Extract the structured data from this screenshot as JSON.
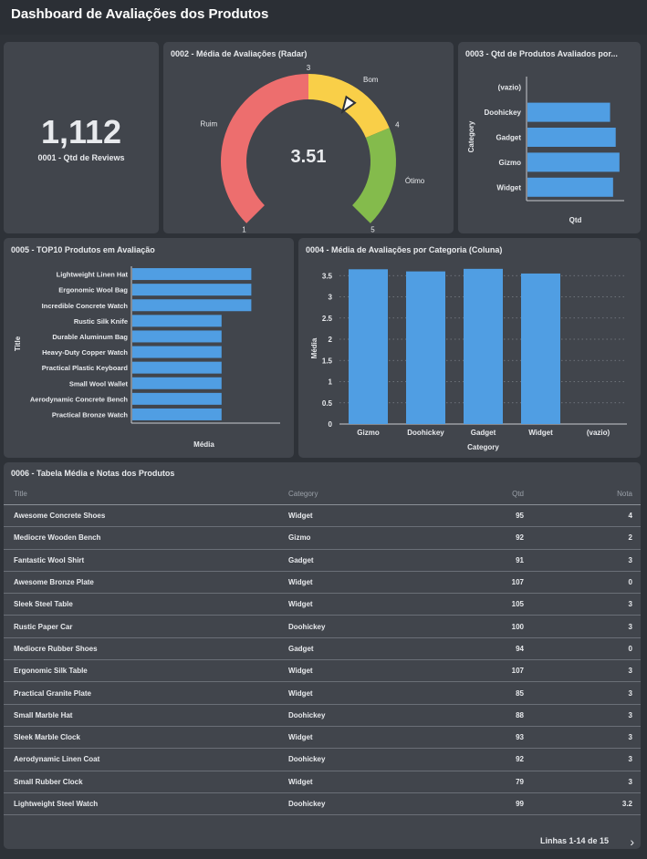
{
  "header": {
    "title": "Dashboard de Avaliações dos Produtos"
  },
  "kpi": {
    "value": "1,112",
    "label": "0001 - Qtd de Reviews"
  },
  "gauge": {
    "title": "0002 - Média de Avaliações (Radar)",
    "value": 3.51,
    "value_label": "3.51",
    "min": 1,
    "max": 5,
    "min_label": "1",
    "max_label": "5",
    "threshold_labels": [
      "3",
      "4"
    ],
    "bands": [
      {
        "label": "Ruim",
        "from": 1,
        "to": 3,
        "color": "#ed6e6e"
      },
      {
        "label": "Bom",
        "from": 3,
        "to": 4,
        "color": "#f9cf48"
      },
      {
        "label": "Ótimo",
        "from": 4,
        "to": 5,
        "color": "#84bb4c"
      }
    ]
  },
  "chart_data": [
    {
      "id": "qtd-by-category",
      "type": "bar",
      "orientation": "horizontal",
      "title": "0003 - Qtd de Produtos Avaliados por...",
      "xlabel": "Qtd",
      "ylabel": "Category",
      "categories": [
        "(vazio)",
        "Doohickey",
        "Gadget",
        "Gizmo",
        "Widget"
      ],
      "values": [
        0,
        220,
        235,
        245,
        228
      ],
      "xlim": [
        0,
        260
      ],
      "color": "#509ee3"
    },
    {
      "id": "top10-products",
      "type": "bar",
      "orientation": "horizontal",
      "title": "0005 - TOP10 Produtos em Avaliação",
      "xlabel": "Média",
      "ylabel": "Title",
      "categories": [
        "Lightweight Linen Hat",
        "Ergonomic Wool Bag",
        "Incredible Concrete Watch",
        "Rustic Silk Knife",
        "Durable Aluminum Bag",
        "Heavy-Duty Copper Watch",
        "Practical Plastic Keyboard",
        "Small Wool Wallet",
        "Aerodynamic Concrete Bench",
        "Practical Bronze Watch"
      ],
      "values": [
        4,
        4,
        4,
        3,
        3,
        3,
        3,
        3,
        3,
        3
      ],
      "xlim": [
        0,
        5
      ],
      "color": "#509ee3"
    },
    {
      "id": "avg-by-category",
      "type": "bar",
      "orientation": "vertical",
      "title": "0004 - Média de Avaliações por Categoria (Coluna)",
      "xlabel": "Category",
      "ylabel": "Média",
      "categories": [
        "Gizmo",
        "Doohickey",
        "Gadget",
        "Widget",
        "(vazio)"
      ],
      "values": [
        3.65,
        3.6,
        3.66,
        3.55,
        0
      ],
      "yticks": [
        "0",
        "0.5",
        "1",
        "1.5",
        "2",
        "2.5",
        "3",
        "3.5"
      ],
      "ylim": [
        0,
        3.85
      ],
      "grid": true,
      "color": "#509ee3"
    }
  ],
  "table": {
    "title": "0006 - Tabela Média e Notas dos Produtos",
    "columns": [
      "Title",
      "Category",
      "Qtd",
      "Nota"
    ],
    "rows": [
      [
        "Awesome Concrete Shoes",
        "Widget",
        "95",
        "4"
      ],
      [
        "Mediocre Wooden Bench",
        "Gizmo",
        "92",
        "2"
      ],
      [
        "Fantastic Wool Shirt",
        "Gadget",
        "91",
        "3"
      ],
      [
        "Awesome Bronze Plate",
        "Widget",
        "107",
        "0"
      ],
      [
        "Sleek Steel Table",
        "Widget",
        "105",
        "3"
      ],
      [
        "Rustic Paper Car",
        "Doohickey",
        "100",
        "3"
      ],
      [
        "Mediocre Rubber Shoes",
        "Gadget",
        "94",
        "0"
      ],
      [
        "Ergonomic Silk Table",
        "Widget",
        "107",
        "3"
      ],
      [
        "Practical Granite Plate",
        "Widget",
        "85",
        "3"
      ],
      [
        "Small Marble Hat",
        "Doohickey",
        "88",
        "3"
      ],
      [
        "Sleek Marble Clock",
        "Widget",
        "93",
        "3"
      ],
      [
        "Aerodynamic Linen Coat",
        "Doohickey",
        "92",
        "3"
      ],
      [
        "Small Rubber Clock",
        "Widget",
        "79",
        "3"
      ],
      [
        "Lightweight Steel Watch",
        "Doohickey",
        "99",
        "3.2"
      ]
    ],
    "pagination": "Linhas 1-14 de 15",
    "next_icon": "chevron-right-icon"
  }
}
